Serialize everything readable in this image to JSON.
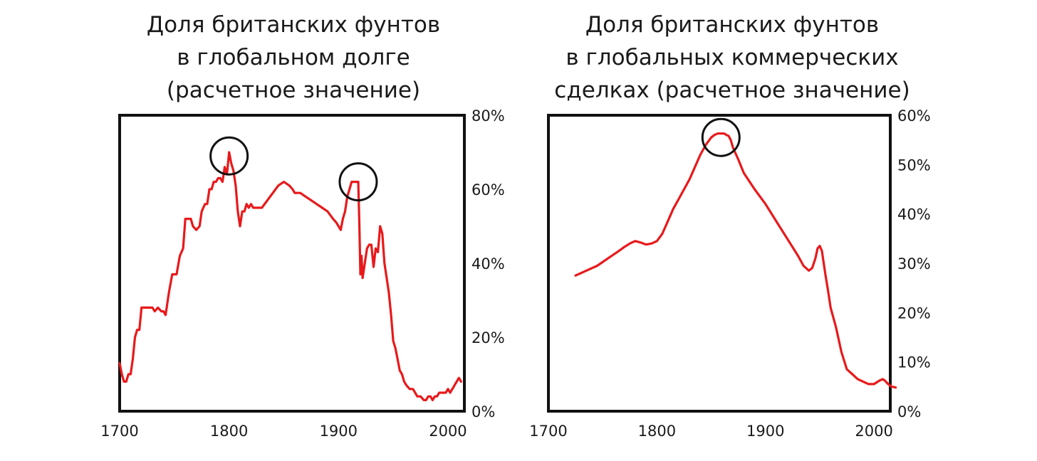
{
  "chart_data": [
    {
      "type": "line",
      "title_lines": [
        "Доля британских фунтов",
        "в глобальном долге",
        "(расчетное значение)"
      ],
      "xlim": [
        1700,
        2015
      ],
      "ylim": [
        0,
        80
      ],
      "x_ticks": [
        "1700",
        "1800",
        "1900",
        "2000"
      ],
      "y_ticks": [
        "0%",
        "20%",
        "40%",
        "60%",
        "80%"
      ],
      "y_axis_side": "right",
      "grid": false,
      "line_color": "#e8191b",
      "series": [
        {
          "x": [
            1700,
            1702,
            1704,
            1706,
            1708,
            1710,
            1712,
            1714,
            1716,
            1718,
            1720,
            1722,
            1725,
            1728,
            1730,
            1732,
            1735,
            1738,
            1740,
            1742,
            1745,
            1748,
            1750,
            1752,
            1755,
            1758,
            1760,
            1763,
            1765,
            1767,
            1770,
            1773,
            1775,
            1778,
            1780,
            1782,
            1784,
            1786,
            1788,
            1790,
            1792,
            1794,
            1796,
            1798,
            1800,
            1802,
            1804,
            1806,
            1808,
            1810,
            1812,
            1814,
            1816,
            1818,
            1820,
            1822,
            1825,
            1830,
            1835,
            1840,
            1845,
            1850,
            1855,
            1858,
            1860,
            1865,
            1870,
            1875,
            1880,
            1885,
            1890,
            1895,
            1898,
            1900,
            1902,
            1904,
            1906,
            1908,
            1910,
            1912,
            1914,
            1916,
            1918,
            1919,
            1920,
            1921,
            1922,
            1924,
            1926,
            1928,
            1930,
            1932,
            1934,
            1936,
            1938,
            1940,
            1942,
            1944,
            1946,
            1948,
            1950,
            1952,
            1954,
            1956,
            1958,
            1960,
            1962,
            1965,
            1968,
            1970,
            1972,
            1975,
            1978,
            1980,
            1982,
            1984,
            1986,
            1988,
            1990,
            1992,
            1994,
            1996,
            1998,
            2000,
            2002,
            2004,
            2006,
            2008,
            2010,
            2012
          ],
          "y": [
            13,
            10,
            8,
            8,
            10,
            10,
            14,
            20,
            22,
            22,
            28,
            28,
            28,
            28,
            28,
            27,
            28,
            27,
            27,
            26,
            32,
            37,
            37,
            37,
            42,
            44,
            52,
            52,
            52,
            50,
            49,
            50,
            54,
            56,
            56,
            60,
            60,
            62,
            62,
            63,
            63,
            62,
            66,
            64,
            70,
            67,
            65,
            61,
            54,
            50,
            54,
            54,
            56,
            55,
            56,
            55,
            55,
            55,
            57,
            59,
            61,
            62,
            61,
            60,
            59,
            59,
            58,
            57,
            56,
            55,
            54,
            52,
            51,
            50,
            49,
            52,
            54,
            58,
            60,
            62,
            62,
            62,
            62,
            51,
            37,
            42,
            36,
            40,
            44,
            45,
            45,
            39,
            44,
            43,
            50,
            48,
            40,
            36,
            32,
            26,
            19,
            17,
            14,
            11,
            10,
            8,
            7,
            6,
            6,
            5,
            4,
            4,
            3,
            3,
            4,
            4,
            3,
            4,
            4,
            5,
            5,
            5,
            5,
            6,
            5,
            6,
            7,
            8,
            9,
            8
          ]
        }
      ],
      "annotations": [
        {
          "type": "circle",
          "x": 1800,
          "y": 69
        },
        {
          "type": "circle",
          "x": 1918,
          "y": 62
        }
      ]
    },
    {
      "type": "line",
      "title_lines": [
        "Доля британских фунтов",
        "в глобальных коммерческих",
        "сделках (расчетное значение)"
      ],
      "xlim": [
        1700,
        2015
      ],
      "ylim": [
        0,
        60
      ],
      "x_ticks": [
        "1700",
        "1800",
        "1900",
        "2000"
      ],
      "y_ticks": [
        "0%",
        "10%",
        "20%",
        "30%",
        "40%",
        "50%",
        "60%"
      ],
      "y_axis_side": "right",
      "grid": false,
      "line_color": "#e8191b",
      "series": [
        {
          "x": [
            1725,
            1735,
            1745,
            1755,
            1765,
            1770,
            1775,
            1780,
            1785,
            1790,
            1795,
            1800,
            1805,
            1810,
            1815,
            1820,
            1825,
            1830,
            1835,
            1840,
            1845,
            1850,
            1853,
            1856,
            1858,
            1860,
            1862,
            1864,
            1866,
            1868,
            1870,
            1875,
            1880,
            1890,
            1900,
            1910,
            1920,
            1930,
            1935,
            1940,
            1943,
            1946,
            1948,
            1950,
            1952,
            1955,
            1958,
            1960,
            1965,
            1970,
            1975,
            1980,
            1985,
            1990,
            1995,
            2000,
            2005,
            2008,
            2010,
            2013,
            2016,
            2020
          ],
          "y": [
            27.5,
            28.5,
            29.5,
            31,
            32.5,
            33.3,
            34,
            34.5,
            34.2,
            33.8,
            34,
            34.5,
            36,
            38.5,
            41,
            43,
            45,
            47,
            49.5,
            52,
            54,
            55.5,
            56,
            56.3,
            56.3,
            56.3,
            56.3,
            56,
            55.8,
            55,
            53.5,
            51,
            48.3,
            45,
            42,
            38.5,
            35,
            31.5,
            29.5,
            28.5,
            29,
            31,
            33,
            33.5,
            32.5,
            28,
            24,
            21,
            17,
            12,
            8.5,
            7.5,
            6.5,
            6,
            5.5,
            5.5,
            6.2,
            6.5,
            6.2,
            5.5,
            5,
            4.8
          ]
        }
      ],
      "annotations": [
        {
          "type": "circle",
          "x": 1859,
          "y": 55.5
        }
      ]
    }
  ]
}
